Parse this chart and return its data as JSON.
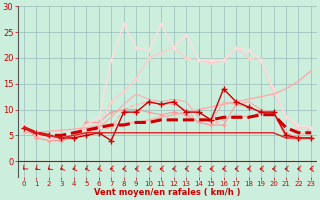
{
  "x": [
    0,
    1,
    2,
    3,
    4,
    5,
    6,
    7,
    8,
    9,
    10,
    11,
    12,
    13,
    14,
    15,
    16,
    17,
    18,
    19,
    20,
    21,
    22,
    23
  ],
  "series": [
    {
      "name": "line_pink_solid1",
      "color": "#ffaaaa",
      "lw": 0.8,
      "marker": "None",
      "linestyle": "-",
      "y": [
        7.0,
        5.0,
        4.5,
        4.5,
        5.0,
        5.5,
        6.5,
        8.5,
        11.0,
        13.0,
        12.0,
        11.5,
        12.0,
        11.5,
        8.5,
        7.5,
        11.5,
        11.0,
        11.5,
        10.0,
        9.5,
        4.5,
        4.5,
        6.5
      ]
    },
    {
      "name": "line_pink_dashed",
      "color": "#ffaaaa",
      "lw": 0.8,
      "marker": "None",
      "linestyle": "--",
      "y": [
        7.0,
        4.5,
        4.0,
        4.0,
        4.5,
        5.5,
        6.0,
        6.5,
        10.0,
        11.0,
        11.5,
        11.0,
        11.0,
        10.0,
        7.5,
        7.0,
        8.0,
        9.0,
        8.5,
        9.5,
        9.5,
        4.5,
        4.0,
        4.5
      ]
    },
    {
      "name": "line_pink_marker1",
      "color": "#ff9999",
      "lw": 0.8,
      "marker": "+",
      "markersize": 3,
      "linestyle": "-",
      "y": [
        7.0,
        4.5,
        4.0,
        4.0,
        4.5,
        7.5,
        7.5,
        9.5,
        10.0,
        10.0,
        9.5,
        9.0,
        9.5,
        9.0,
        7.5,
        7.0,
        7.0,
        11.0,
        10.5,
        9.5,
        9.5,
        5.5,
        4.5,
        4.5
      ]
    },
    {
      "name": "line_light_rising",
      "color": "#ffcccc",
      "lw": 1.0,
      "marker": "+",
      "markersize": 3,
      "linestyle": "-",
      "y": [
        7.0,
        5.0,
        4.5,
        5.0,
        5.5,
        6.0,
        7.0,
        11.5,
        13.5,
        16.0,
        20.0,
        21.0,
        22.0,
        20.0,
        19.5,
        19.0,
        19.5,
        22.0,
        20.0,
        19.5,
        13.5,
        8.5,
        6.5,
        6.5
      ]
    },
    {
      "name": "line_lightest_peak",
      "color": "#ffdddd",
      "lw": 1.0,
      "marker": "+",
      "markersize": 3,
      "linestyle": "-",
      "y": [
        7.0,
        5.0,
        4.5,
        5.0,
        5.5,
        7.0,
        8.5,
        19.5,
        26.5,
        22.0,
        21.5,
        26.5,
        22.0,
        24.5,
        19.5,
        19.5,
        19.5,
        22.0,
        21.5,
        19.5,
        14.0,
        8.5,
        7.0,
        6.5
      ]
    },
    {
      "name": "line_trend_pink",
      "color": "#ffaaaa",
      "lw": 1.0,
      "marker": "None",
      "linestyle": "-",
      "y": [
        5.5,
        5.5,
        5.8,
        6.0,
        6.2,
        6.5,
        6.8,
        7.0,
        7.3,
        7.5,
        8.0,
        8.5,
        9.0,
        9.5,
        10.0,
        10.5,
        11.0,
        11.5,
        12.0,
        12.5,
        13.0,
        14.0,
        15.5,
        17.5
      ]
    },
    {
      "name": "line_dark_red_thick_dashed",
      "color": "#cc0000",
      "lw": 2.2,
      "marker": "None",
      "linestyle": "--",
      "y": [
        6.5,
        5.5,
        5.0,
        5.0,
        5.5,
        6.0,
        6.5,
        7.0,
        7.0,
        7.5,
        7.5,
        8.0,
        8.0,
        8.0,
        8.0,
        8.0,
        8.5,
        8.5,
        8.5,
        9.0,
        9.0,
        6.5,
        5.5,
        5.5
      ]
    },
    {
      "name": "line_dark_red_marker",
      "color": "#cc0000",
      "lw": 1.0,
      "marker": "+",
      "markersize": 4,
      "linestyle": "-",
      "y": [
        6.5,
        5.5,
        5.0,
        4.5,
        4.5,
        5.0,
        5.5,
        4.0,
        9.5,
        9.5,
        11.5,
        11.0,
        11.5,
        9.5,
        9.5,
        8.0,
        14.0,
        11.5,
        10.5,
        9.5,
        9.5,
        5.0,
        4.5,
        4.5
      ]
    },
    {
      "name": "line_red_flat",
      "color": "#dd2222",
      "lw": 1.0,
      "marker": "None",
      "linestyle": "-",
      "y": [
        6.5,
        5.5,
        5.0,
        4.5,
        5.0,
        5.5,
        5.5,
        5.5,
        5.5,
        5.5,
        5.5,
        5.5,
        5.5,
        5.5,
        5.5,
        5.5,
        5.5,
        5.5,
        5.5,
        5.5,
        5.5,
        4.5,
        4.5,
        4.5
      ]
    }
  ],
  "xlabel": "Vent moyen/en rafales ( km/h )",
  "ylim": [
    -3,
    30
  ],
  "xlim": [
    -0.5,
    23.5
  ],
  "yticks": [
    0,
    5,
    10,
    15,
    20,
    25,
    30
  ],
  "xticks": [
    0,
    1,
    2,
    3,
    4,
    5,
    6,
    7,
    8,
    9,
    10,
    11,
    12,
    13,
    14,
    15,
    16,
    17,
    18,
    19,
    20,
    21,
    22,
    23
  ],
  "background_color": "#cceedd",
  "grid_color": "#99bbbb",
  "tick_color": "#cc0000",
  "label_color": "#cc0000",
  "arrow_color": "#cc0000",
  "arrow_angles": [
    230,
    220,
    220,
    210,
    200,
    200,
    195,
    190,
    185,
    185,
    185,
    185,
    185,
    185,
    185,
    185,
    185,
    185,
    185,
    185,
    185,
    185,
    185,
    185
  ]
}
